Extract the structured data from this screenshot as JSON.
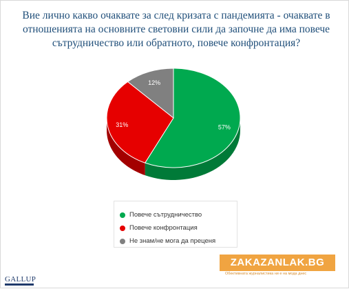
{
  "title": "Вие лично какво очаквате за след кризата с пандемията - очаквате в отношенията на основните световни сили да започне да има повече сътрудничество или обратното, повече конфронтация?",
  "chart_data": {
    "type": "pie",
    "categories": [
      "Повече сътрудничество",
      "Повече конфронтация",
      "Не знам/не мога да преценя"
    ],
    "values": [
      57,
      31,
      12
    ],
    "labels": [
      "57%",
      "31%",
      "12%"
    ],
    "colors": [
      "#00a94f",
      "#e60000",
      "#808080"
    ],
    "shadow_colors": [
      "#007a38",
      "#a30000",
      "#5a5a5a"
    ],
    "legend_position": "bottom"
  },
  "legend": {
    "items": [
      {
        "label": "Повече сътрудничество",
        "color": "#00a94f"
      },
      {
        "label": "Повече конфронтация",
        "color": "#e60000"
      },
      {
        "label": "Не знам/не мога да преценя",
        "color": "#808080"
      }
    ]
  },
  "logo": {
    "text": "GALLUP"
  },
  "watermark": {
    "text": "ZAKAZANLAK.BG",
    "subtext": "Обективната журналистика ни е на мода днес"
  }
}
